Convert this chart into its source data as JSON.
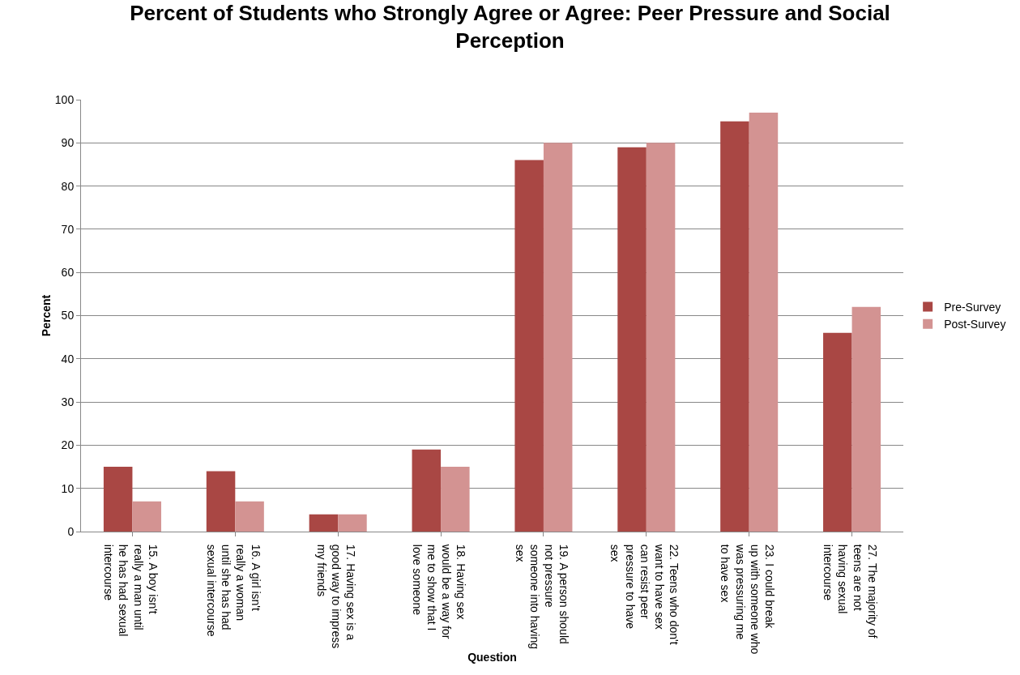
{
  "chart_data": {
    "type": "bar",
    "title": "Percent of Students who Strongly Agree or Agree: Peer Pressure and Social Perception",
    "xlabel": "Question",
    "ylabel": "Percent",
    "categories": [
      "15. A boy isn't really a man until he has had sexual intercourse",
      "16. A girl isn't really a woman until she has had sexual intercourse",
      "17. Having sex is a good way to impress my friends",
      "18. Having sex would be a way for me to show that I love someone",
      "19. A person should not pressure someone into having sex",
      "22. Teens who don't want to have sex can resist peer pressure to have sex",
      "23. I could break up with someone who was pressuring me to have sex",
      "27. The majority of teens are not having sexual intercourse"
    ],
    "series": [
      {
        "name": "Pre-Survey",
        "color": "#a94744",
        "values": [
          15,
          14,
          4,
          19,
          86,
          89,
          95,
          46
        ]
      },
      {
        "name": "Post-Survey",
        "color": "#d39392",
        "values": [
          7,
          7,
          4,
          15,
          90,
          90,
          97,
          52
        ]
      }
    ],
    "ylim": [
      0,
      100
    ],
    "yticks": [
      0,
      10,
      20,
      30,
      40,
      50,
      60,
      70,
      80,
      90,
      100
    ],
    "grid": "y",
    "legend": "right"
  }
}
